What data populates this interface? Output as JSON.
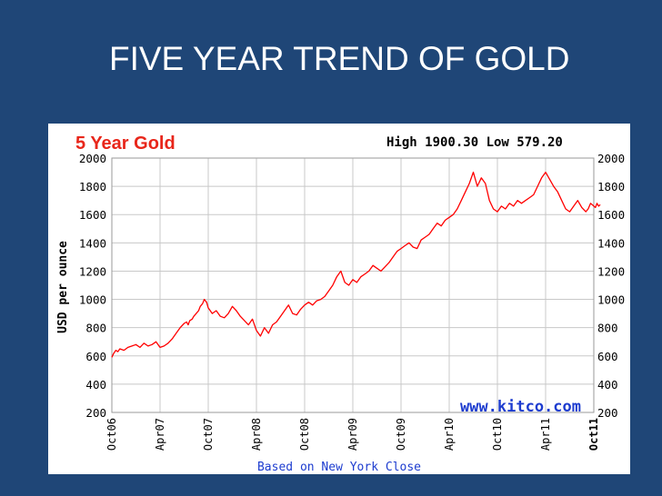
{
  "slide": {
    "title": "FIVE YEAR TREND OF GOLD"
  },
  "chart_data": {
    "type": "line",
    "title": "5 Year Gold",
    "stats_text": "High 1900.30 Low 579.20",
    "ylabel": "USD per ounce",
    "footer": "Based on New York Close",
    "watermark": "www.kitco.com",
    "ylim": [
      200,
      2000
    ],
    "y_ticks": [
      200,
      400,
      600,
      800,
      1000,
      1200,
      1400,
      1600,
      1800,
      2000
    ],
    "x_ticks": [
      "Oct06",
      "Apr07",
      "Oct07",
      "Apr08",
      "Oct08",
      "Apr09",
      "Oct09",
      "Apr10",
      "Oct10",
      "Apr11",
      "Oct11"
    ],
    "grid": true,
    "colors": {
      "line": "#ff0000",
      "title": "#e8261a",
      "watermark": "#1d3ccf",
      "footer": "#1d3ccf",
      "grid": "#c8c8c8",
      "plot_bg": "#ffffff"
    },
    "series": [
      {
        "x": [
          0.0,
          0.25,
          0.5,
          0.75,
          1.0,
          1.5,
          2.0,
          2.5,
          3.0,
          3.5,
          4.0,
          4.5,
          5.0,
          5.5,
          6.0,
          6.5,
          7.0,
          7.5,
          8.0,
          8.5,
          9.0,
          9.3,
          9.5,
          9.7,
          10.0,
          10.2,
          10.5,
          10.8,
          11.0,
          11.3,
          11.5,
          11.8,
          12.0,
          12.5,
          13.0,
          13.5,
          14.0,
          14.5,
          15.0,
          15.5,
          16.0,
          16.5,
          17.0,
          17.5,
          18.0,
          18.5,
          19.0,
          19.5,
          20.0,
          20.5,
          21.0,
          21.5,
          22.0,
          22.5,
          23.0,
          23.5,
          24.0,
          24.5,
          25.0,
          25.5,
          26.0,
          26.5,
          27.0,
          27.5,
          28.0,
          28.5,
          29.0,
          29.5,
          30.0,
          30.5,
          31.0,
          31.5,
          32.0,
          32.5,
          33.0,
          33.5,
          34.0,
          34.5,
          35.0,
          35.5,
          36.0,
          36.5,
          37.0,
          37.5,
          38.0,
          38.5,
          39.0,
          39.5,
          40.0,
          40.5,
          41.0,
          41.5,
          42.0,
          42.5,
          43.0,
          43.5,
          44.0,
          44.5,
          45.0,
          45.5,
          46.0,
          46.5,
          47.0,
          47.5,
          48.0,
          48.5,
          49.0,
          49.5,
          50.0,
          50.5,
          51.0,
          51.5,
          52.0,
          52.5,
          53.0,
          53.5,
          54.0,
          54.5,
          55.0,
          55.5,
          56.0,
          56.5,
          57.0,
          57.5,
          58.0,
          58.5,
          59.0,
          59.3,
          59.6,
          60.0,
          60.2,
          60.4,
          60.6,
          60.8
        ],
        "y": [
          590,
          620,
          640,
          630,
          650,
          640,
          660,
          670,
          680,
          660,
          690,
          670,
          680,
          700,
          660,
          670,
          690,
          720,
          760,
          800,
          830,
          840,
          820,
          850,
          860,
          880,
          900,
          920,
          950,
          970,
          1000,
          980,
          940,
          900,
          920,
          880,
          870,
          900,
          950,
          920,
          880,
          850,
          820,
          860,
          780,
          740,
          800,
          760,
          820,
          840,
          880,
          920,
          960,
          900,
          890,
          930,
          960,
          980,
          960,
          990,
          1000,
          1020,
          1060,
          1100,
          1160,
          1200,
          1120,
          1100,
          1140,
          1120,
          1160,
          1180,
          1200,
          1240,
          1220,
          1200,
          1230,
          1260,
          1300,
          1340,
          1360,
          1380,
          1400,
          1370,
          1360,
          1420,
          1440,
          1460,
          1500,
          1540,
          1520,
          1560,
          1580,
          1600,
          1640,
          1700,
          1760,
          1820,
          1900,
          1800,
          1860,
          1820,
          1700,
          1640,
          1620,
          1660,
          1640,
          1680,
          1660,
          1700,
          1680,
          1700,
          1720,
          1740,
          1800,
          1860,
          1900,
          1850,
          1800,
          1760,
          1700,
          1640,
          1620,
          1660,
          1700,
          1650,
          1620,
          1640,
          1680,
          1660,
          1650,
          1680,
          1660,
          1670
        ]
      }
    ]
  }
}
